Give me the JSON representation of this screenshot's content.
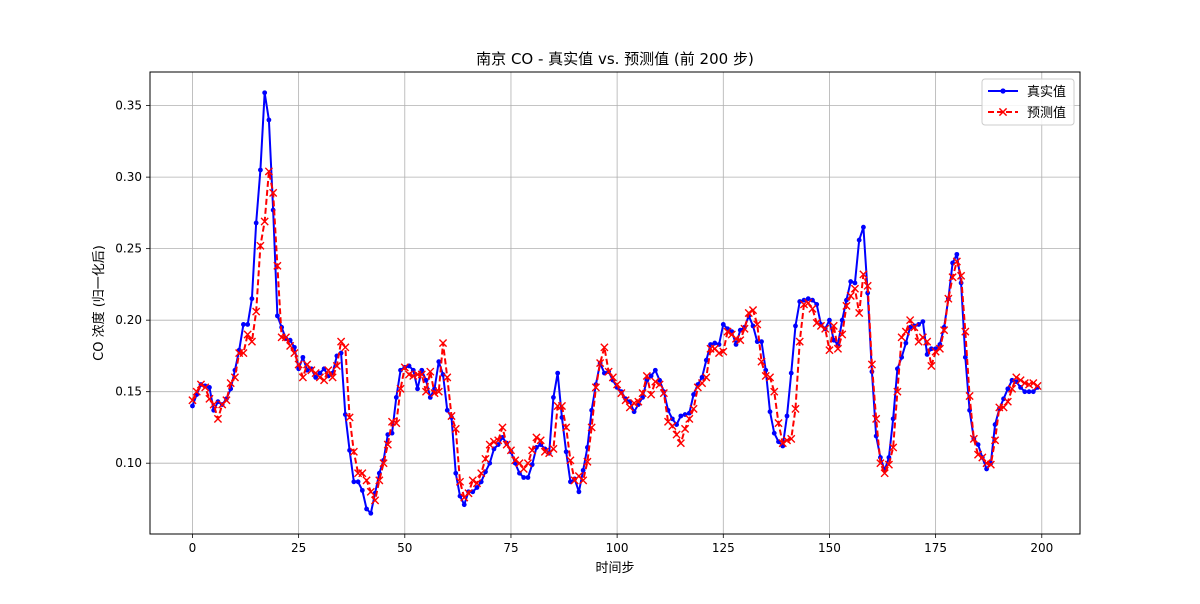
{
  "chart_data": {
    "type": "line",
    "title": "南京 CO - 真实值 vs. 预测值 (前 200 步)",
    "xlabel": "时间步",
    "ylabel": "CO 浓度 (归一化后)",
    "xlim": [
      -10,
      209
    ],
    "ylim": [
      0.0505,
      0.3735
    ],
    "x_ticks": [
      0,
      25,
      50,
      75,
      100,
      125,
      150,
      175,
      200
    ],
    "y_ticks": [
      0.1,
      0.15,
      0.2,
      0.25,
      0.3,
      0.35
    ],
    "y_tick_labels": [
      "0.10",
      "0.15",
      "0.20",
      "0.25",
      "0.30",
      "0.35"
    ],
    "grid": true,
    "legend_position": "top-right",
    "series": [
      {
        "name": "真实值",
        "color": "#0000ff",
        "line_style": "solid",
        "marker": "dot",
        "x_start": 0,
        "values": [
          0.14,
          0.148,
          0.155,
          0.154,
          0.153,
          0.137,
          0.143,
          0.141,
          0.145,
          0.152,
          0.165,
          0.179,
          0.197,
          0.197,
          0.215,
          0.268,
          0.305,
          0.359,
          0.34,
          0.277,
          0.203,
          0.195,
          0.187,
          0.186,
          0.181,
          0.166,
          0.174,
          0.165,
          0.166,
          0.16,
          0.163,
          0.166,
          0.161,
          0.163,
          0.175,
          0.177,
          0.134,
          0.109,
          0.087,
          0.087,
          0.081,
          0.068,
          0.065,
          0.079,
          0.093,
          0.102,
          0.12,
          0.121,
          0.146,
          0.165,
          0.167,
          0.168,
          0.165,
          0.152,
          0.165,
          0.158,
          0.146,
          0.152,
          0.171,
          0.162,
          0.137,
          0.132,
          0.093,
          0.077,
          0.071,
          0.08,
          0.08,
          0.083,
          0.087,
          0.094,
          0.1,
          0.11,
          0.113,
          0.118,
          0.114,
          0.108,
          0.1,
          0.093,
          0.09,
          0.09,
          0.099,
          0.111,
          0.113,
          0.11,
          0.107,
          0.146,
          0.163,
          0.132,
          0.108,
          0.087,
          0.089,
          0.08,
          0.095,
          0.111,
          0.137,
          0.155,
          0.17,
          0.163,
          0.164,
          0.158,
          0.153,
          0.15,
          0.145,
          0.143,
          0.136,
          0.141,
          0.146,
          0.158,
          0.161,
          0.165,
          0.158,
          0.15,
          0.137,
          0.131,
          0.127,
          0.133,
          0.134,
          0.135,
          0.148,
          0.155,
          0.16,
          0.172,
          0.183,
          0.184,
          0.183,
          0.197,
          0.194,
          0.192,
          0.183,
          0.193,
          0.195,
          0.203,
          0.196,
          0.185,
          0.185,
          0.165,
          0.136,
          0.121,
          0.115,
          0.112,
          0.133,
          0.163,
          0.196,
          0.213,
          0.214,
          0.215,
          0.214,
          0.211,
          0.197,
          0.194,
          0.2,
          0.186,
          0.183,
          0.2,
          0.214,
          0.227,
          0.226,
          0.256,
          0.265,
          0.219,
          0.164,
          0.119,
          0.104,
          0.095,
          0.104,
          0.131,
          0.166,
          0.174,
          0.184,
          0.195,
          0.196,
          0.197,
          0.199,
          0.176,
          0.18,
          0.18,
          0.183,
          0.195,
          0.215,
          0.24,
          0.246,
          0.226,
          0.174,
          0.137,
          0.117,
          0.113,
          0.104,
          0.096,
          0.1,
          0.127,
          0.138,
          0.145,
          0.152,
          0.158,
          0.157,
          0.153,
          0.15,
          0.15,
          0.15,
          0.153
        ]
      },
      {
        "name": "预测值",
        "color": "#ff0000",
        "line_style": "dashed",
        "marker": "x",
        "x_start": 0,
        "values": [
          0.144,
          0.15,
          0.155,
          0.153,
          0.145,
          0.141,
          0.131,
          0.141,
          0.144,
          0.156,
          0.16,
          0.177,
          0.177,
          0.19,
          0.185,
          0.206,
          0.252,
          0.269,
          0.304,
          0.289,
          0.238,
          0.188,
          0.188,
          0.182,
          0.177,
          0.169,
          0.16,
          0.169,
          0.165,
          0.163,
          0.16,
          0.158,
          0.165,
          0.16,
          0.168,
          0.185,
          0.181,
          0.132,
          0.108,
          0.093,
          0.093,
          0.088,
          0.08,
          0.074,
          0.088,
          0.1,
          0.113,
          0.129,
          0.128,
          0.152,
          0.167,
          0.162,
          0.161,
          0.162,
          0.162,
          0.15,
          0.164,
          0.149,
          0.15,
          0.184,
          0.16,
          0.133,
          0.124,
          0.087,
          0.076,
          0.079,
          0.088,
          0.086,
          0.093,
          0.103,
          0.113,
          0.115,
          0.116,
          0.125,
          0.113,
          0.109,
          0.102,
          0.1,
          0.096,
          0.1,
          0.109,
          0.118,
          0.116,
          0.108,
          0.107,
          0.11,
          0.14,
          0.14,
          0.125,
          0.102,
          0.088,
          0.091,
          0.088,
          0.101,
          0.125,
          0.153,
          0.17,
          0.181,
          0.164,
          0.16,
          0.155,
          0.149,
          0.144,
          0.139,
          0.142,
          0.143,
          0.149,
          0.161,
          0.148,
          0.157,
          0.155,
          0.149,
          0.129,
          0.126,
          0.12,
          0.114,
          0.124,
          0.131,
          0.138,
          0.153,
          0.156,
          0.16,
          0.18,
          0.18,
          0.177,
          0.178,
          0.192,
          0.19,
          0.187,
          0.186,
          0.194,
          0.205,
          0.207,
          0.197,
          0.171,
          0.161,
          0.16,
          0.15,
          0.128,
          0.114,
          0.116,
          0.117,
          0.138,
          0.185,
          0.211,
          0.212,
          0.208,
          0.198,
          0.196,
          0.194,
          0.179,
          0.196,
          0.18,
          0.19,
          0.21,
          0.217,
          0.222,
          0.205,
          0.232,
          0.224,
          0.169,
          0.131,
          0.1,
          0.093,
          0.099,
          0.111,
          0.15,
          0.188,
          0.192,
          0.2,
          0.195,
          0.185,
          0.188,
          0.185,
          0.168,
          0.178,
          0.18,
          0.193,
          0.215,
          0.23,
          0.241,
          0.231,
          0.192,
          0.147,
          0.117,
          0.106,
          0.104,
          0.1,
          0.099,
          0.116,
          0.139,
          0.139,
          0.143,
          0.152,
          0.16,
          0.158,
          0.156,
          0.155,
          0.156,
          0.154
        ]
      }
    ]
  }
}
